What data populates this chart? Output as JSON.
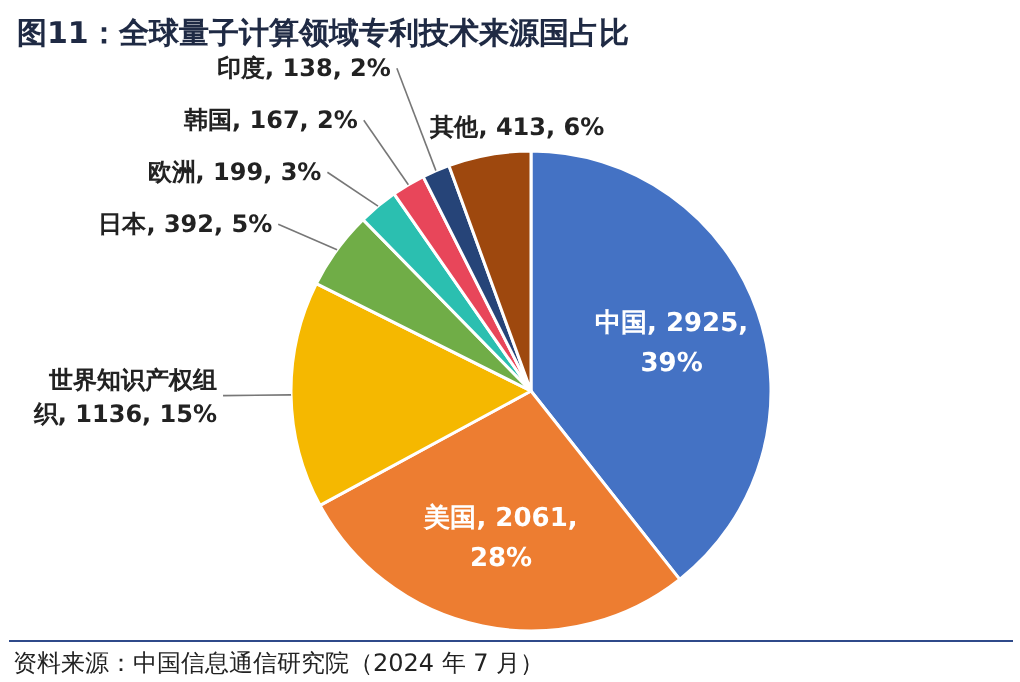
{
  "chart_data": {
    "type": "pie",
    "title": "图11：全球量子计算领域专利技术来源国占比",
    "categories": [
      "中国",
      "美国",
      "世界知识产权组织",
      "日本",
      "欧洲",
      "韩国",
      "印度",
      "其他"
    ],
    "values": [
      2925,
      2061,
      1136,
      392,
      199,
      167,
      138,
      413
    ],
    "value_labels": [
      "2925, 39%",
      "2061, 28%",
      "1136, 15%",
      "392, 5%",
      "199, 3%",
      "167, 2%",
      "138, 2%",
      "413, 6%"
    ],
    "colors": [
      "#4472c4",
      "#ed7d31",
      "#f5b800",
      "#70ad47",
      "#2bbfb0",
      "#e8465a",
      "#264478",
      "#9e480e"
    ],
    "annotations": [
      "资料来源：中国信息通信研究院（2024 年 7 月）"
    ]
  }
}
